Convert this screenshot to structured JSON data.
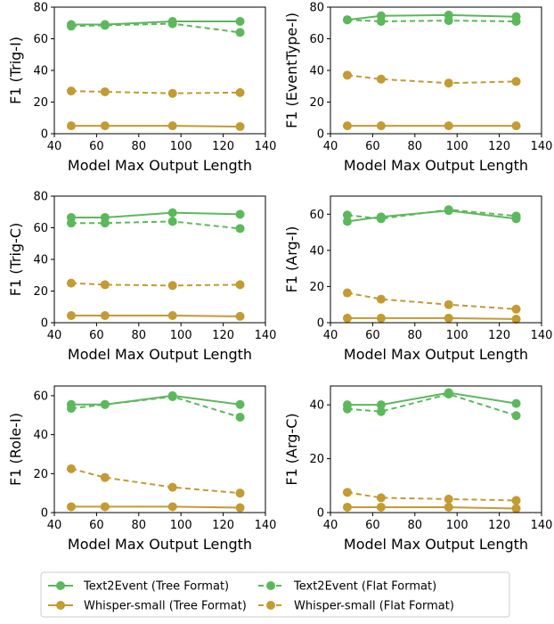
{
  "colors": {
    "text2event": "#5cb85c",
    "whisper": "#c49a32"
  },
  "legend": {
    "entries": [
      {
        "label": "Text2Event (Tree Format)",
        "series": 0
      },
      {
        "label": "Whisper-small (Tree Format)",
        "series": 2
      },
      {
        "label": "Text2Event (Flat Format)",
        "series": 1
      },
      {
        "label": "Whisper-small (Flat Format)",
        "series": 3
      }
    ]
  },
  "chart_data": [
    {
      "type": "line",
      "xlabel": "Model Max Output Length",
      "ylabel": "F1 (Trig-I)",
      "x": [
        48,
        64,
        96,
        128
      ],
      "xlim": [
        40,
        140
      ],
      "ylim": [
        0,
        80
      ],
      "xticks": [
        40,
        60,
        80,
        100,
        120,
        140
      ],
      "yticks": [
        0,
        20,
        40,
        60,
        80
      ],
      "series": [
        {
          "name": "Text2Event (Tree Format)",
          "values": [
            69,
            69,
            71,
            71
          ]
        },
        {
          "name": "Text2Event (Flat Format)",
          "values": [
            68,
            68.5,
            69.5,
            64
          ]
        },
        {
          "name": "Whisper-small (Tree Format)",
          "values": [
            5,
            5,
            5,
            4.5
          ]
        },
        {
          "name": "Whisper-small (Flat Format)",
          "values": [
            27,
            26.5,
            25.5,
            26
          ]
        }
      ]
    },
    {
      "type": "line",
      "xlabel": "Model Max Output Length",
      "ylabel": "F1 (EventType-I)",
      "x": [
        48,
        64,
        96,
        128
      ],
      "xlim": [
        40,
        140
      ],
      "ylim": [
        0,
        80
      ],
      "xticks": [
        40,
        60,
        80,
        100,
        120,
        140
      ],
      "yticks": [
        0,
        20,
        40,
        60,
        80
      ],
      "series": [
        {
          "name": "Text2Event (Tree Format)",
          "values": [
            72,
            74.5,
            75,
            74
          ]
        },
        {
          "name": "Text2Event (Flat Format)",
          "values": [
            72,
            71,
            71.5,
            71
          ]
        },
        {
          "name": "Whisper-small (Tree Format)",
          "values": [
            5,
            5,
            5,
            5
          ]
        },
        {
          "name": "Whisper-small (Flat Format)",
          "values": [
            37,
            34.5,
            32,
            33
          ]
        }
      ]
    },
    {
      "type": "line",
      "xlabel": "Model Max Output Length",
      "ylabel": "F1 (Trig-C)",
      "x": [
        48,
        64,
        96,
        128
      ],
      "xlim": [
        40,
        140
      ],
      "ylim": [
        0,
        80
      ],
      "xticks": [
        40,
        60,
        80,
        100,
        120,
        140
      ],
      "yticks": [
        0,
        20,
        40,
        60,
        80
      ],
      "series": [
        {
          "name": "Text2Event (Tree Format)",
          "values": [
            66.5,
            66.5,
            69.5,
            68.5
          ]
        },
        {
          "name": "Text2Event (Flat Format)",
          "values": [
            63,
            63,
            64,
            59.5
          ]
        },
        {
          "name": "Whisper-small (Tree Format)",
          "values": [
            4.5,
            4.5,
            4.5,
            4
          ]
        },
        {
          "name": "Whisper-small (Flat Format)",
          "values": [
            25,
            24,
            23.5,
            24
          ]
        }
      ]
    },
    {
      "type": "line",
      "xlabel": "Model Max Output Length",
      "ylabel": "F1 (Arg-I)",
      "x": [
        48,
        64,
        96,
        128
      ],
      "xlim": [
        40,
        140
      ],
      "ylim": [
        0,
        70
      ],
      "xticks": [
        40,
        60,
        80,
        100,
        120,
        140
      ],
      "yticks": [
        0,
        20,
        40,
        60
      ],
      "series": [
        {
          "name": "Text2Event (Tree Format)",
          "values": [
            56,
            58.5,
            62,
            57.5
          ]
        },
        {
          "name": "Text2Event (Flat Format)",
          "values": [
            59.5,
            57.5,
            62.5,
            59
          ]
        },
        {
          "name": "Whisper-small (Tree Format)",
          "values": [
            2.5,
            2.5,
            2.5,
            2
          ]
        },
        {
          "name": "Whisper-small (Flat Format)",
          "values": [
            16.5,
            13,
            10,
            7.5
          ]
        }
      ]
    },
    {
      "type": "line",
      "xlabel": "Model Max Output Length",
      "ylabel": "F1 (Role-I)",
      "x": [
        48,
        64,
        96,
        128
      ],
      "xlim": [
        40,
        140
      ],
      "ylim": [
        0,
        65
      ],
      "xticks": [
        40,
        60,
        80,
        100,
        120,
        140
      ],
      "yticks": [
        0,
        20,
        40,
        60
      ],
      "series": [
        {
          "name": "Text2Event (Tree Format)",
          "values": [
            55.5,
            55.5,
            60,
            55.5
          ]
        },
        {
          "name": "Text2Event (Flat Format)",
          "values": [
            53.5,
            55.5,
            59.5,
            49
          ]
        },
        {
          "name": "Whisper-small (Tree Format)",
          "values": [
            3,
            3,
            3,
            2.5
          ]
        },
        {
          "name": "Whisper-small (Flat Format)",
          "values": [
            22.5,
            18,
            13,
            10
          ]
        }
      ]
    },
    {
      "type": "line",
      "xlabel": "Model Max Output Length",
      "ylabel": "F1 (Arg-C)",
      "x": [
        48,
        64,
        96,
        128
      ],
      "xlim": [
        40,
        140
      ],
      "ylim": [
        0,
        47
      ],
      "xticks": [
        40,
        60,
        80,
        100,
        120,
        140
      ],
      "yticks": [
        0,
        20,
        40
      ],
      "series": [
        {
          "name": "Text2Event (Tree Format)",
          "values": [
            40,
            40,
            44.5,
            40.5
          ]
        },
        {
          "name": "Text2Event (Flat Format)",
          "values": [
            38.5,
            37.5,
            44,
            36
          ]
        },
        {
          "name": "Whisper-small (Tree Format)",
          "values": [
            2,
            2,
            2,
            1.5
          ]
        },
        {
          "name": "Whisper-small (Flat Format)",
          "values": [
            7.5,
            5.5,
            5,
            4.5
          ]
        }
      ]
    }
  ]
}
